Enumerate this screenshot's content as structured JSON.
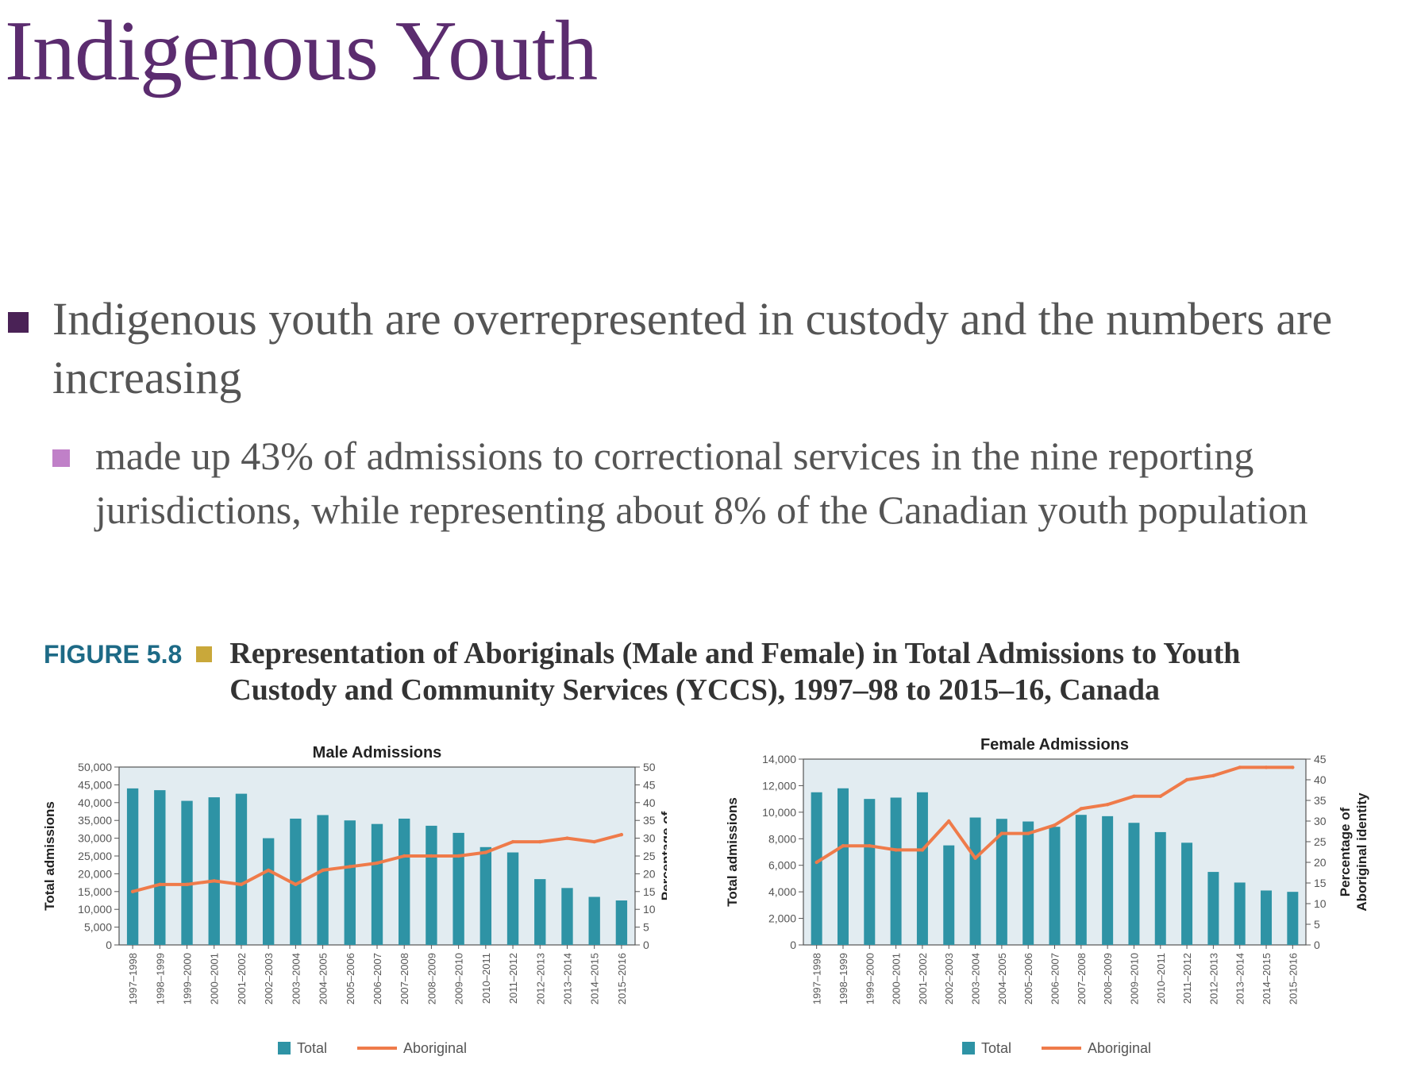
{
  "slide": {
    "title": "Indigenous Youth",
    "bullet_main": "Indigenous youth are overrepresented in custody and the numbers are increasing",
    "bullet_sub": "made up 43% of admissions to correctional services in the nine reporting jurisdictions, while representing about 8% of the Canadian youth population"
  },
  "figure": {
    "label": "FIGURE 5.8",
    "title": "Representation of Aboriginals (Male and Female) in Total Admissions to Youth Custody and Community Services (YCCS), 1997–98 to 2015–16, Canada"
  },
  "colors": {
    "title": "#5b2c6f",
    "bar": "#2e93a5",
    "line": "#ef7b4a",
    "plot_bg": "#e2ecf1",
    "figure_label": "#1d6a86"
  },
  "chart_data": [
    {
      "type": "bar",
      "title": "Male Admissions",
      "ylabel": "Total admissions",
      "y2label": "Percentage of Aboriginal identity",
      "ylim": [
        0,
        50000
      ],
      "y2lim": [
        0,
        50
      ],
      "yticks": [
        "0",
        "5,000",
        "10,000",
        "15,000",
        "20,000",
        "25,000",
        "30,000",
        "35,000",
        "40,000",
        "45,000",
        "50,000"
      ],
      "y2ticks": [
        "0",
        "5",
        "10",
        "15",
        "20",
        "25",
        "30",
        "35",
        "40",
        "45",
        "50"
      ],
      "categories": [
        "1997–1998",
        "1998–1999",
        "1999–2000",
        "2000–2001",
        "2001–2002",
        "2002–2003",
        "2003–2004",
        "2004–2005",
        "2005–2006",
        "2006–2007",
        "2007–2008",
        "2008–2009",
        "2009–2010",
        "2010–2011",
        "2011–2012",
        "2012–2013",
        "2013–2014",
        "2014–2015",
        "2015–2016"
      ],
      "series": [
        {
          "name": "Total",
          "kind": "bar",
          "axis": "left",
          "values": [
            44000,
            43500,
            40500,
            41500,
            42500,
            30000,
            35500,
            36500,
            35000,
            34000,
            35500,
            33500,
            31500,
            27500,
            26000,
            18500,
            16000,
            13500,
            12500
          ]
        },
        {
          "name": "Aboriginal",
          "kind": "line",
          "axis": "right",
          "values": [
            15,
            17,
            17,
            18,
            17,
            21,
            17,
            21,
            22,
            23,
            25,
            25,
            25,
            26,
            29,
            29,
            30,
            29,
            31
          ]
        }
      ],
      "legend": "bottom"
    },
    {
      "type": "bar",
      "title": "Female Admissions",
      "ylabel": "Total admissions",
      "y2label": "Percentage of Aboriginal identity",
      "ylim": [
        0,
        14000
      ],
      "y2lim": [
        0,
        45
      ],
      "yticks": [
        "0",
        "2,000",
        "4,000",
        "6,000",
        "8,000",
        "10,000",
        "12,000",
        "14,000"
      ],
      "y2ticks": [
        "0",
        "5",
        "10",
        "15",
        "20",
        "25",
        "30",
        "35",
        "40",
        "45"
      ],
      "categories": [
        "1997–1998",
        "1998–1999",
        "1999–2000",
        "2000–2001",
        "2001–2002",
        "2002–2003",
        "2003–2004",
        "2004–2005",
        "2005–2006",
        "2006–2007",
        "2007–2008",
        "2008–2009",
        "2009–2010",
        "2010–2011",
        "2011–2012",
        "2012–2013",
        "2013–2014",
        "2014–2015",
        "2015–2016"
      ],
      "series": [
        {
          "name": "Total",
          "kind": "bar",
          "axis": "left",
          "values": [
            11500,
            11800,
            11000,
            11100,
            11500,
            7500,
            9600,
            9500,
            9300,
            8900,
            9800,
            9700,
            9200,
            8500,
            7700,
            5500,
            4700,
            4100,
            4000
          ]
        },
        {
          "name": "Aboriginal",
          "kind": "line",
          "axis": "right",
          "values": [
            20,
            24,
            24,
            23,
            23,
            30,
            21,
            27,
            27,
            29,
            33,
            34,
            36,
            36,
            40,
            41,
            43,
            43,
            43
          ]
        }
      ],
      "legend": "bottom"
    }
  ]
}
